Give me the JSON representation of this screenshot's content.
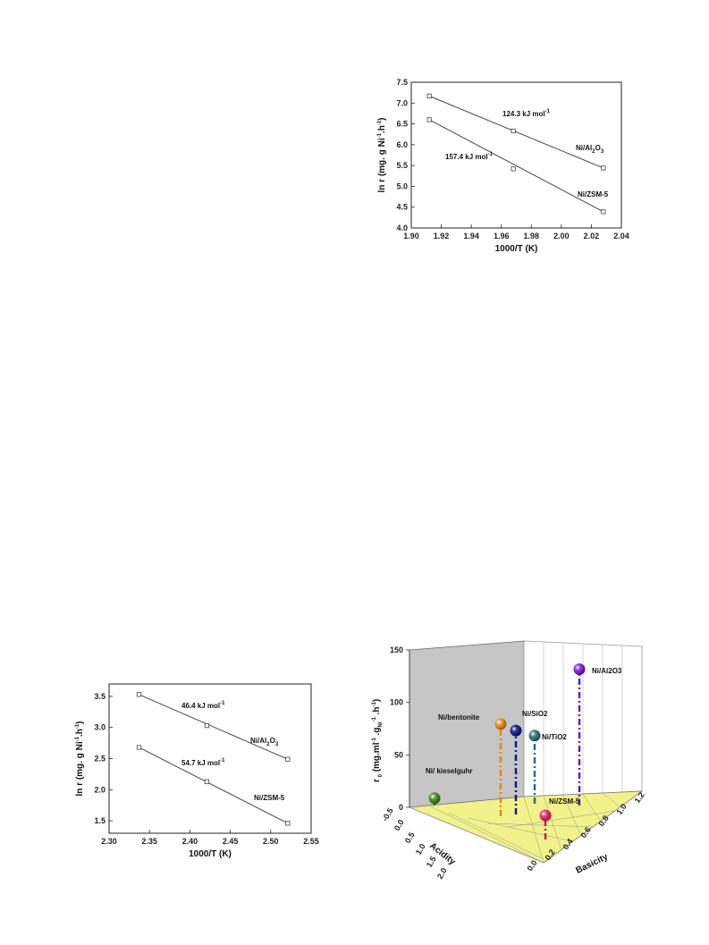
{
  "chart_data": [
    {
      "type": "scatter",
      "xlabel": "1000/T (K)",
      "ylabel_parts": {
        "pre": "ln r (mg. g Ni",
        "sup1": "-1",
        "mid": ".h",
        "sup2": "-1",
        "post": ")"
      },
      "xlim": [
        1.9,
        2.04
      ],
      "ylim": [
        4.0,
        7.5
      ],
      "xticks": [
        "1.90",
        "1.92",
        "1.94",
        "1.96",
        "1.98",
        "2.00",
        "2.02",
        "2.04"
      ],
      "yticks": [
        "4.0",
        "4.5",
        "5.0",
        "5.5",
        "6.0",
        "6.5",
        "7.0",
        "7.5"
      ],
      "series": [
        {
          "name": "Ni/Al2O3",
          "label_main": "Ni/Al",
          "label_sub": "2",
          "label_tail": "O",
          "label_sub2": "3",
          "points": [
            [
              1.912,
              7.17
            ],
            [
              1.968,
              6.33
            ],
            [
              2.028,
              5.44
            ]
          ],
          "line": [
            [
              1.912,
              7.17
            ],
            [
              2.028,
              5.44
            ]
          ],
          "energy": "124.3 kJ mol",
          "energy_sup": "-1"
        },
        {
          "name": "Ni/ZSM-5",
          "label_main": "Ni/ZSM-5",
          "points": [
            [
              1.912,
              6.6
            ],
            [
              1.968,
              5.42
            ],
            [
              2.028,
              4.39
            ]
          ],
          "line": [
            [
              1.912,
              6.6
            ],
            [
              2.028,
              4.39
            ]
          ],
          "energy": "157.4 kJ mol",
          "energy_sup": "-1"
        }
      ]
    },
    {
      "type": "scatter",
      "xlabel": "1000/T (K)",
      "ylabel_parts": {
        "pre": "ln r (mg. g Ni",
        "sup1": "-1",
        "mid": ".h",
        "sup2": "-1",
        "post": ")"
      },
      "xlim": [
        2.3,
        2.55
      ],
      "ylim": [
        1.3,
        3.7
      ],
      "xticks": [
        "2.30",
        "2.35",
        "2.40",
        "2.45",
        "2.50",
        "2.55"
      ],
      "yticks": [
        "1.5",
        "2.0",
        "2.5",
        "3.0",
        "3.5"
      ],
      "series": [
        {
          "name": "Ni/Al2O3",
          "label_main": "Ni/Al",
          "label_sub": "2",
          "label_tail": "O",
          "label_sub2": "3",
          "points": [
            [
              2.337,
              3.53
            ],
            [
              2.421,
              3.03
            ],
            [
              2.521,
              2.49
            ]
          ],
          "line": [
            [
              2.337,
              3.53
            ],
            [
              2.521,
              2.49
            ]
          ],
          "energy": "46.4 kJ mol",
          "energy_sup": "-1"
        },
        {
          "name": "Ni/ZSM-5",
          "label_main": "Ni/ZSM-5",
          "points": [
            [
              2.337,
              2.68
            ],
            [
              2.421,
              2.13
            ],
            [
              2.521,
              1.46
            ]
          ],
          "line": [
            [
              2.337,
              2.68
            ],
            [
              2.521,
              1.46
            ]
          ],
          "energy": "54.7 kJ mol",
          "energy_sup": "-1"
        }
      ]
    },
    {
      "type": "scatter3d",
      "zlabel_parts": {
        "pre": "r",
        "sub0": " 0",
        "mid": " (mg.ml",
        "sup1": "-1",
        "mid2": " .g",
        "subNi": "Ni",
        "sup2": "-1",
        "mid3": " .h",
        "sup3": "-1",
        "post": ")"
      },
      "xlabel": "Acidity",
      "ylabel": "Basicity",
      "zticks": [
        "0",
        "50",
        "100",
        "150"
      ],
      "xticks": [
        "-0.5",
        "0.0",
        "0.5",
        "1.0",
        "1.5",
        "2.0"
      ],
      "yticks": [
        "0.0",
        "0.2",
        "0.4",
        "0.6",
        "0.8",
        "1.0",
        "1.2"
      ],
      "points": [
        {
          "name": "Ni/ kieselguhr",
          "color": "#3a7d1e",
          "stem": "#2f7a2a",
          "value": 7
        },
        {
          "name": "Ni/bentonite",
          "color": "#e08a1e",
          "stem": "#e08a1e",
          "value": 88
        },
        {
          "name": "Ni/SiO2",
          "color": "#1a1a8a",
          "stem": "#1a1a8a",
          "value": 80
        },
        {
          "name": "Ni/TiO2",
          "color": "#2e6f74",
          "stem": "#2e6f74",
          "value": 65
        },
        {
          "name": "Ni/ZSM-5",
          "color": "#e0246b",
          "stem": "#c21c55",
          "value": 23
        },
        {
          "name": "Ni/Al2O3",
          "color": "#7a1fd6",
          "stem": "#6a1ab8",
          "value": 130
        }
      ],
      "label_text": {
        "kieselguhr": "Ni/ kieselguhr",
        "bentonite": "Ni/bentonite",
        "sio2_main": "Ni/SiO",
        "sio2_sub": "2",
        "tio2_main": "Ni/TiO",
        "tio2_sub": "2",
        "zsm": "Ni/ZSM-5",
        "al_main": "Ni/Al",
        "al_sub": "2",
        "al_tail": "O",
        "al_sub2": "3"
      }
    }
  ]
}
